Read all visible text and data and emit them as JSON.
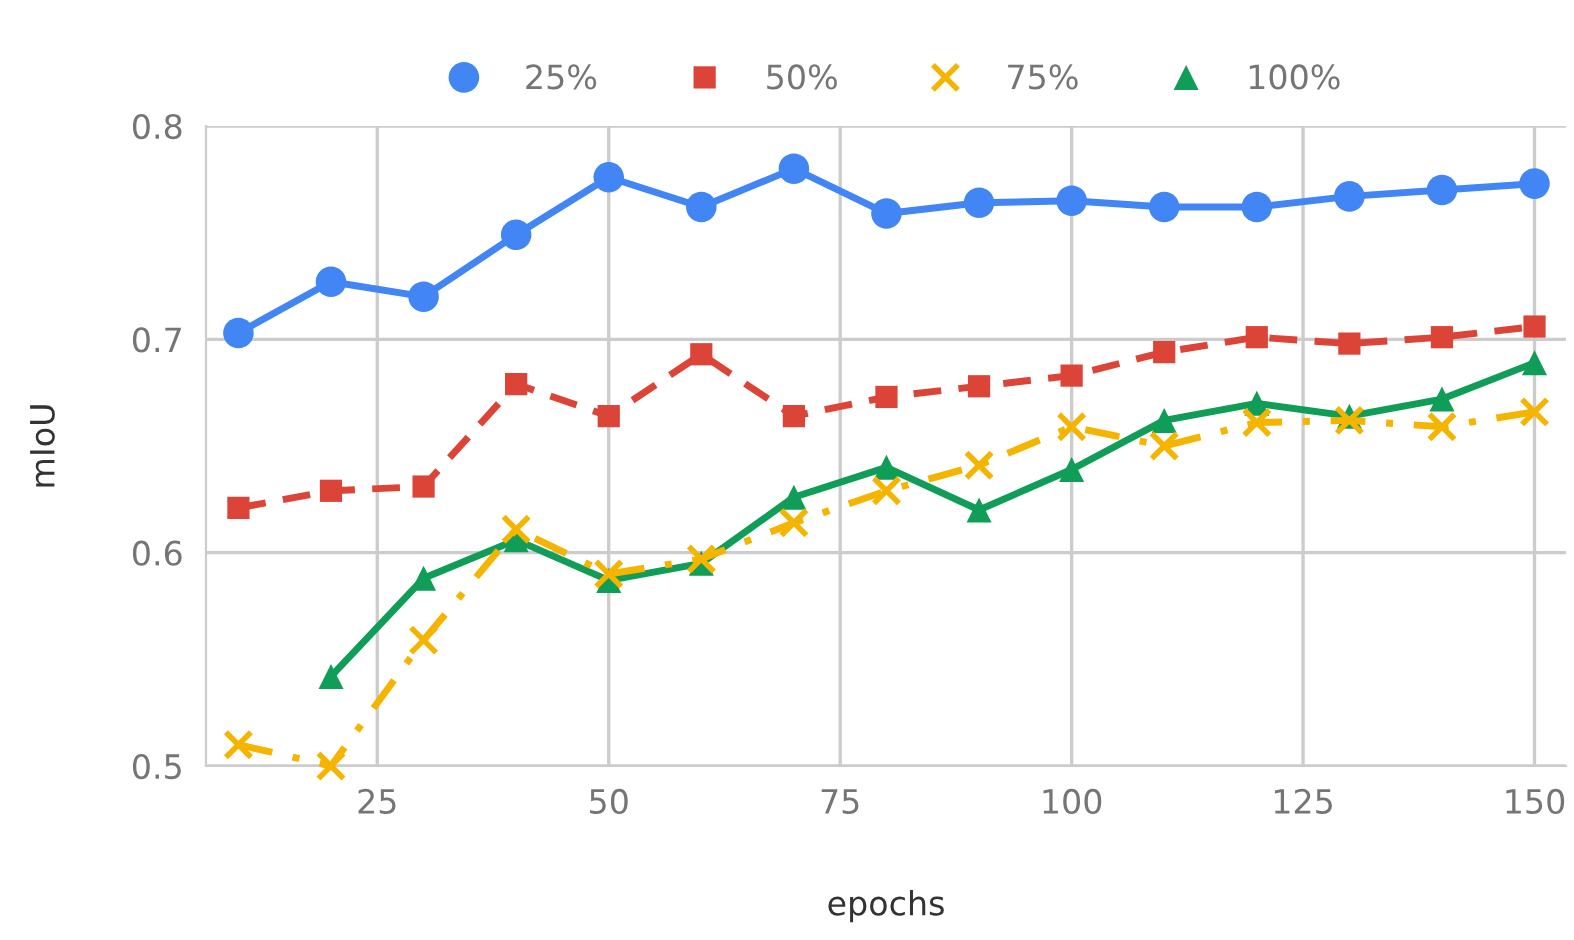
{
  "chart_data": {
    "type": "line",
    "xlabel": "epochs",
    "ylabel": "mIoU",
    "x": [
      10,
      20,
      30,
      40,
      50,
      60,
      70,
      80,
      90,
      100,
      110,
      120,
      130,
      140,
      150
    ],
    "series": [
      {
        "name": "25%",
        "color": "#4285f4",
        "marker": "circle",
        "line_style": "solid",
        "values": [
          0.703,
          0.727,
          0.72,
          0.749,
          0.776,
          0.762,
          0.78,
          0.759,
          0.764,
          0.765,
          0.762,
          0.762,
          0.767,
          0.77,
          0.773
        ]
      },
      {
        "name": "50%",
        "color": "#db4437",
        "marker": "square",
        "line_style": "dashed",
        "values": [
          0.621,
          0.629,
          0.631,
          0.679,
          0.664,
          0.693,
          0.664,
          0.673,
          0.678,
          0.683,
          0.694,
          0.701,
          0.698,
          0.701,
          0.706
        ]
      },
      {
        "name": "75%",
        "color": "#f4b400",
        "marker": "cross",
        "line_style": "dotted",
        "values": [
          0.51,
          0.5,
          0.559,
          0.611,
          0.59,
          0.597,
          0.614,
          0.629,
          0.641,
          0.659,
          0.65,
          0.661,
          0.662,
          0.659,
          0.666
        ]
      },
      {
        "name": "100%",
        "color": "#0f9d58",
        "marker": "triangle",
        "line_style": "solid",
        "values": [
          null,
          0.542,
          0.588,
          0.606,
          0.587,
          0.595,
          0.626,
          0.64,
          0.62,
          0.639,
          0.662,
          0.67,
          0.664,
          0.672,
          0.689
        ]
      }
    ],
    "xlim": [
      6.5,
      153.4
    ],
    "ylim": [
      0.5,
      0.8
    ],
    "xticks": [
      25,
      50,
      75,
      100,
      125,
      150
    ],
    "yticks": [
      0.5,
      0.6,
      0.7,
      0.8
    ],
    "grid": true,
    "legend": "top"
  }
}
